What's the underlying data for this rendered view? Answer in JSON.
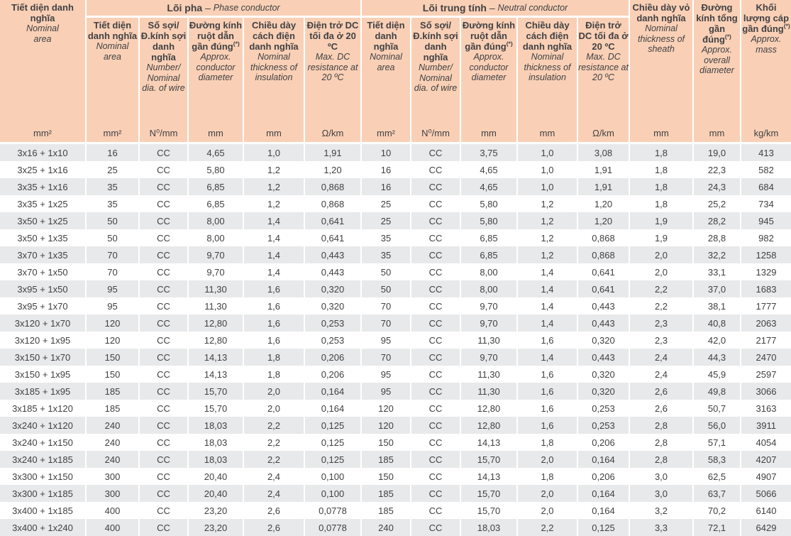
{
  "colors": {
    "header_bg": "#f9d0b6",
    "row_alt_bg": "#e8e9ea",
    "row_bg": "#ffffff",
    "text": "#414042"
  },
  "header": {
    "col1": {
      "vi": "Tiết diện danh nghĩa",
      "en": "Nominal area",
      "unit": "mm²"
    },
    "groups": [
      {
        "vi": "Lõi pha",
        "dash": " – ",
        "en": "Phase conductor"
      },
      {
        "vi": "Lõi trung tính",
        "dash": " – ",
        "en": "Neutral conductor"
      }
    ],
    "phase": [
      {
        "vi": "Tiết diện danh nghĩa",
        "en": "Nominal area",
        "unit": "mm²"
      },
      {
        "vi": "Số sợi/ Đ.kính sợi danh nghĩa",
        "en": "Number/ Nominal dia. of wire",
        "unit": "N⁰/mm"
      },
      {
        "vi": "Đường kính ruột dẫn gần đúng",
        "sup": "(*)",
        "en": "Approx. conductor diameter",
        "unit": "mm"
      },
      {
        "vi": "Chiều dày cách điện danh nghĩa",
        "en": "Nominal thickness of insulation",
        "unit": "mm"
      },
      {
        "vi": "Điện trở DC tối đa ở 20 ºC",
        "en": "Max. DC resistance at 20 ºC",
        "unit": "Ω/km"
      }
    ],
    "neutral": [
      {
        "vi": "Tiết diện danh nghĩa",
        "en": "Nominal area",
        "unit": "mm²"
      },
      {
        "vi": "Số sợi/ Đ.kính sợi danh nghĩa",
        "en": "Number/ Nominal dia. of wire",
        "unit": "N⁰/mm"
      },
      {
        "vi": "Đường kính ruột dẫn gần đúng",
        "sup": "(*)",
        "en": "Approx. conductor diameter",
        "unit": "mm"
      },
      {
        "vi": "Chiều dày cách điện danh nghĩa",
        "en": "Nominal thickness of insulation",
        "unit": "mm"
      },
      {
        "vi": "Điện trở DC tối đa ở 20 ºC",
        "en": "Max. DC resistance at 20 ºC",
        "unit": "Ω/km"
      }
    ],
    "col_sheath": {
      "vi": "Chiều dày vỏ danh nghĩa",
      "en": "Nominal thickness of sheath",
      "unit": "mm"
    },
    "col_overall": {
      "vi": "Đường kính tổng gần đúng",
      "sup": "(*)",
      "en": "Approx. overall diameter",
      "unit": "mm"
    },
    "col_mass": {
      "vi": "Khối lượng cáp gần đúng",
      "sup": "(*)",
      "en": "Approx. mass",
      "unit": "kg/km"
    }
  },
  "rows": [
    [
      "3x16 + 1x10",
      "16",
      "CC",
      "4,65",
      "1,0",
      "1,91",
      "10",
      "CC",
      "3,75",
      "1,0",
      "3,08",
      "1,8",
      "19,0",
      "413"
    ],
    [
      "3x25 + 1x16",
      "25",
      "CC",
      "5,80",
      "1,2",
      "1,20",
      "16",
      "CC",
      "4,65",
      "1,0",
      "1,91",
      "1,8",
      "22,3",
      "582"
    ],
    [
      "3x35 + 1x16",
      "35",
      "CC",
      "6,85",
      "1,2",
      "0,868",
      "16",
      "CC",
      "4,65",
      "1,0",
      "1,91",
      "1,8",
      "24,3",
      "684"
    ],
    [
      "3x35 + 1x25",
      "35",
      "CC",
      "6,85",
      "1,2",
      "0,868",
      "25",
      "CC",
      "5,80",
      "1,2",
      "1,20",
      "1,8",
      "25,2",
      "734"
    ],
    [
      "3x50 + 1x25",
      "50",
      "CC",
      "8,00",
      "1,4",
      "0,641",
      "25",
      "CC",
      "5,80",
      "1,2",
      "1,20",
      "1,9",
      "28,2",
      "945"
    ],
    [
      "3x50 + 1x35",
      "50",
      "CC",
      "8,00",
      "1,4",
      "0,641",
      "35",
      "CC",
      "6,85",
      "1,2",
      "0,868",
      "1,9",
      "28,8",
      "982"
    ],
    [
      "3x70 + 1x35",
      "70",
      "CC",
      "9,70",
      "1,4",
      "0,443",
      "35",
      "CC",
      "6,85",
      "1,2",
      "0,868",
      "2,0",
      "32,2",
      "1258"
    ],
    [
      "3x70 + 1x50",
      "70",
      "CC",
      "9,70",
      "1,4",
      "0,443",
      "50",
      "CC",
      "8,00",
      "1,4",
      "0,641",
      "2,0",
      "33,1",
      "1329"
    ],
    [
      "3x95 + 1x50",
      "95",
      "CC",
      "11,30",
      "1,6",
      "0,320",
      "50",
      "CC",
      "8,00",
      "1,4",
      "0,641",
      "2,2",
      "37,0",
      "1683"
    ],
    [
      "3x95 + 1x70",
      "95",
      "CC",
      "11,30",
      "1,6",
      "0,320",
      "70",
      "CC",
      "9,70",
      "1,4",
      "0,443",
      "2,2",
      "38,1",
      "1777"
    ],
    [
      "3x120 + 1x70",
      "120",
      "CC",
      "12,80",
      "1,6",
      "0,253",
      "70",
      "CC",
      "9,70",
      "1,4",
      "0,443",
      "2,3",
      "40,8",
      "2063"
    ],
    [
      "3x120 + 1x95",
      "120",
      "CC",
      "12,80",
      "1,6",
      "0,253",
      "95",
      "CC",
      "11,30",
      "1,6",
      "0,320",
      "2,3",
      "42,0",
      "2177"
    ],
    [
      "3x150 + 1x70",
      "150",
      "CC",
      "14,13",
      "1,8",
      "0,206",
      "70",
      "CC",
      "9,70",
      "1,4",
      "0,443",
      "2,4",
      "44,3",
      "2470"
    ],
    [
      "3x150 + 1x95",
      "150",
      "CC",
      "14,13",
      "1,8",
      "0,206",
      "95",
      "CC",
      "11,30",
      "1,6",
      "0,320",
      "2,4",
      "45,9",
      "2597"
    ],
    [
      "3x185 + 1x95",
      "185",
      "CC",
      "15,70",
      "2,0",
      "0,164",
      "95",
      "CC",
      "11,30",
      "1,6",
      "0,320",
      "2,6",
      "49,8",
      "3066"
    ],
    [
      "3x185 + 1x120",
      "185",
      "CC",
      "15,70",
      "2,0",
      "0,164",
      "120",
      "CC",
      "12,80",
      "1,6",
      "0,253",
      "2,6",
      "50,7",
      "3163"
    ],
    [
      "3x240 + 1x120",
      "240",
      "CC",
      "18,03",
      "2,2",
      "0,125",
      "120",
      "CC",
      "12,80",
      "1,6",
      "0,253",
      "2,8",
      "56,0",
      "3911"
    ],
    [
      "3x240 + 1x150",
      "240",
      "CC",
      "18,03",
      "2,2",
      "0,125",
      "150",
      "CC",
      "14,13",
      "1,8",
      "0,206",
      "2,8",
      "57,1",
      "4054"
    ],
    [
      "3x240 + 1x185",
      "240",
      "CC",
      "18,03",
      "2,2",
      "0,125",
      "185",
      "CC",
      "15,70",
      "2,0",
      "0,164",
      "2,8",
      "58,3",
      "4207"
    ],
    [
      "3x300 + 1x150",
      "300",
      "CC",
      "20,40",
      "2,4",
      "0,100",
      "150",
      "CC",
      "14,13",
      "1,8",
      "0,206",
      "3,0",
      "62,5",
      "4907"
    ],
    [
      "3x300 + 1x185",
      "300",
      "CC",
      "20,40",
      "2,4",
      "0,100",
      "185",
      "CC",
      "15,70",
      "2,0",
      "0,164",
      "3,0",
      "63,7",
      "5066"
    ],
    [
      "3x400 + 1x185",
      "400",
      "CC",
      "23,20",
      "2,6",
      "0,0778",
      "185",
      "CC",
      "15,70",
      "2,0",
      "0,164",
      "3,2",
      "70,2",
      "6140"
    ],
    [
      "3x400 + 1x240",
      "400",
      "CC",
      "23,20",
      "2,6",
      "0,0778",
      "240",
      "CC",
      "18,03",
      "2,2",
      "0,125",
      "3,3",
      "72,1",
      "6429"
    ]
  ]
}
